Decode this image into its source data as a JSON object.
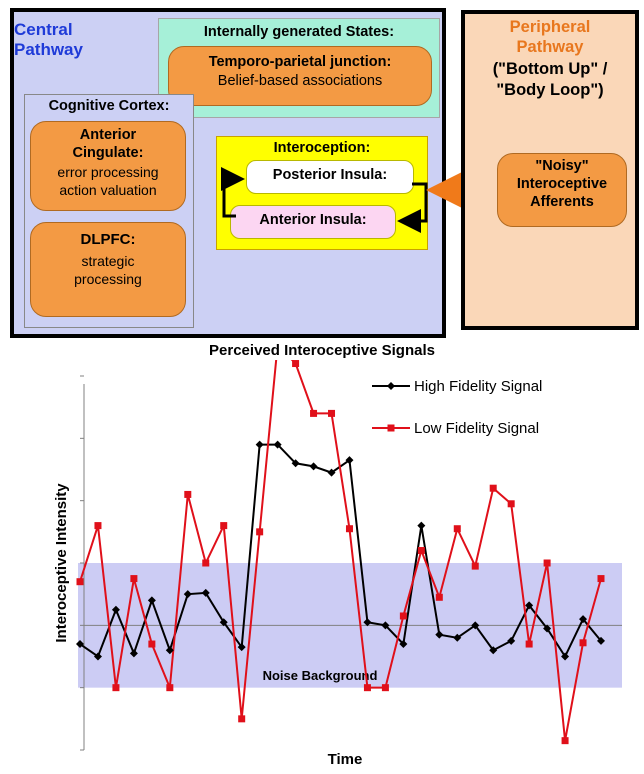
{
  "diagram": {
    "central_pathway": {
      "line1": "Central",
      "line2": "Pathway"
    },
    "internal_states": {
      "title": "Internally generated States:",
      "tpj_title": "Temporo-parietal junction:",
      "tpj_desc": "Belief-based associations"
    },
    "cognitive_cortex": {
      "title": "Cognitive Cortex:",
      "acc_title1": "Anterior",
      "acc_title2": "Cingulate:",
      "acc_desc1": "error processing",
      "acc_desc2": "action valuation",
      "dlpfc_title": "DLPFC:",
      "dlpfc_desc1": "strategic",
      "dlpfc_desc2": "processing"
    },
    "interoception": {
      "title": "Interoception:",
      "posterior": "Posterior Insula:",
      "anterior": "Anterior Insula:"
    },
    "peripheral_pathway": {
      "title1": "Peripheral",
      "title2": "Pathway",
      "sub1": "(\"Bottom Up\" /",
      "sub2": "\"Body Loop\")",
      "afferents1": "\"Noisy\"",
      "afferents2": "Interoceptive",
      "afferents3": "Afferents"
    },
    "colors": {
      "central_blue": "#1f3bd8",
      "peripheral_orange": "#e8771e",
      "box_orange": "#f39a44",
      "arrow_orange": "#f07a1a"
    }
  },
  "chart_data": {
    "type": "line",
    "title": "Perceived Interoceptive Signals",
    "xlabel": "Time",
    "ylabel": "Interoceptive Intensity",
    "band_label": "Noise Background",
    "band": {
      "y_min": -1,
      "y_max": 1,
      "color": "#ccccf4"
    },
    "ylim": [
      -2,
      4
    ],
    "x": [
      1,
      2,
      3,
      4,
      5,
      6,
      7,
      8,
      9,
      10,
      11,
      12,
      13,
      14,
      15,
      16,
      17,
      18,
      19,
      20,
      21,
      22,
      23,
      24,
      25,
      26,
      27,
      28,
      29,
      30
    ],
    "legend_position": "top-right",
    "series": [
      {
        "name": "High Fidelity Signal",
        "color": "#000000",
        "marker": "diamond",
        "values": [
          -0.3,
          -0.5,
          0.25,
          -0.45,
          0.4,
          -0.4,
          0.5,
          0.52,
          0.05,
          -0.35,
          2.9,
          2.9,
          2.6,
          2.55,
          2.45,
          2.65,
          0.05,
          0.0,
          -0.3,
          1.6,
          -0.15,
          -0.2,
          0.0,
          -0.4,
          -0.25,
          0.32,
          -0.05,
          -0.5,
          0.1,
          -0.25
        ]
      },
      {
        "name": "Low Fidelity Signal",
        "color": "#e0101a",
        "marker": "square",
        "values": [
          0.7,
          1.6,
          -1.0,
          0.75,
          -0.3,
          -1.0,
          2.1,
          1.0,
          1.6,
          -1.5,
          1.5,
          4.5,
          4.2,
          3.4,
          3.4,
          1.55,
          -1.0,
          -1.0,
          0.15,
          1.2,
          0.45,
          1.55,
          0.95,
          2.2,
          1.95,
          -0.3,
          1.0,
          -1.85,
          -0.28,
          0.75
        ]
      }
    ]
  }
}
